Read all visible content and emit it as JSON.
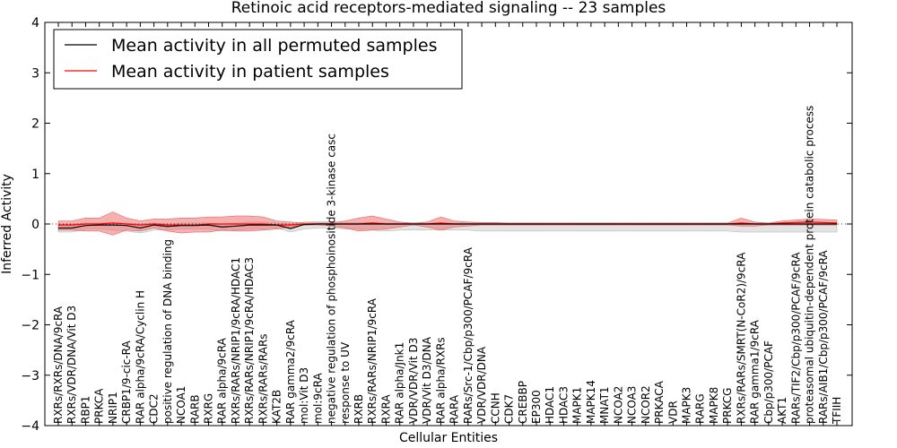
{
  "chart_data": {
    "type": "line",
    "title": "Retinoic acid receptors-mediated signaling -- 23 samples",
    "xlabel": "Cellular Entities",
    "ylabel": "Inferred Activity",
    "ylim": [
      -4,
      4
    ],
    "yticks": [
      -4,
      -3,
      -2,
      -1,
      0,
      1,
      2,
      3,
      4
    ],
    "ytick_labels": [
      "−4",
      "−3",
      "−2",
      "−1",
      "0",
      "1",
      "2",
      "3",
      "4"
    ],
    "legend": {
      "placement": "top-left",
      "entries": [
        {
          "label": "Mean activity in all permuted samples",
          "color": "#000000"
        },
        {
          "label": "Mean activity in patient samples",
          "color": "#ff0000"
        }
      ]
    },
    "categories": [
      "RXRs/RXRs/DNA/9cRA",
      "RXRs/VDR/DNA/Vit D3",
      "RBP1",
      "PRKCA",
      "NRIP1",
      "CRBP1/9-cic-RA",
      "RAR alpha/9cRA/Cyclin H",
      "CDC2",
      "positive regulation of DNA binding",
      "NCOA1",
      "RARB",
      "RXRG",
      "RAR alpha/9cRA",
      "RXRs/RARs/NRIP1/9cRA/HDAC1",
      "RXRs/RARs/NRIP1/9cRA/HDAC3",
      "RXRs/RARs/RARs",
      "KAT2B",
      "RAR gamma2/9cRA",
      "mol:Vit D3",
      "mol:9cRA",
      "negative regulation of phosphoinositide 3-kinase casc",
      "response to UV",
      "RXRB",
      "RXRs/RARs/NRIP1/9cRA",
      "RXRA",
      "RAR alpha/Jnk1",
      "VDR/VDR/Vit D3",
      "VDR/Vit D3/DNA",
      "RAR alpha/RXRs",
      "RARA",
      "RARs/Src-1/Cbp/p300/PCAF/9cRA",
      "VDR/VDR/DNA",
      "CCNH",
      "CDK7",
      "CREBBP",
      "EP300",
      "HDAC1",
      "HDAC3",
      "MAPK1",
      "MAPK14",
      "MNAT1",
      "NCOA2",
      "NCOA3",
      "NCOR2",
      "PRKACA",
      "VDR",
      "MAPK3",
      "RARG",
      "MAPK8",
      "PRKCG",
      "RXRs/RARs/SMRT(N-CoR2)/9cRA",
      "RAR gamma1/9cRA",
      "Cbp/p300/PCAF",
      "AKT1",
      "RARs/TIF2/Cbp/p300/PCAF/9cRA",
      "proteasomal ubiquitin-dependent protein catabolic process",
      "RARs/AIB1/Cbp/p300/PCAF/9cRA",
      "TFIIH"
    ],
    "series": [
      {
        "name": "Mean activity in all permuted samples",
        "color": "#000000",
        "values": [
          -0.08,
          -0.08,
          -0.03,
          -0.02,
          -0.02,
          -0.03,
          -0.08,
          -0.02,
          -0.05,
          -0.03,
          -0.03,
          -0.02,
          -0.06,
          -0.04,
          -0.02,
          -0.02,
          -0.02,
          -0.09,
          -0.01,
          0.0,
          0.0,
          0.0,
          0.0,
          0.0,
          0.0,
          0.0,
          0.0,
          0.0,
          0.0,
          0.0,
          0.0,
          0.0,
          0.0,
          0.0,
          0.0,
          0.0,
          0.0,
          0.0,
          0.0,
          0.0,
          0.0,
          0.0,
          0.0,
          0.0,
          0.0,
          0.0,
          0.0,
          0.0,
          0.0,
          0.0,
          0.0,
          0.0,
          0.0,
          0.0,
          0.0,
          0.0,
          0.0,
          0.0
        ],
        "band_upper": [
          0.0,
          0.0,
          0.02,
          0.02,
          0.02,
          0.02,
          0.0,
          0.02,
          0.0,
          0.02,
          0.02,
          0.02,
          0.0,
          0.02,
          0.04,
          0.04,
          0.02,
          0.0,
          0.04,
          0.05,
          0.05,
          0.03,
          0.03,
          0.03,
          0.02,
          0.02,
          0.02,
          0.02,
          0.02,
          0.02,
          0.02,
          0.02,
          0.02,
          0.02,
          0.02,
          0.02,
          0.02,
          0.02,
          0.02,
          0.02,
          0.02,
          0.02,
          0.02,
          0.02,
          0.02,
          0.02,
          0.02,
          0.02,
          0.02,
          0.02,
          0.02,
          0.02,
          0.02,
          0.02,
          0.02,
          0.02,
          0.02,
          0.02
        ],
        "band_lower": [
          -0.16,
          -0.16,
          -0.1,
          -0.1,
          -0.12,
          -0.14,
          -0.18,
          -0.12,
          -0.12,
          -0.1,
          -0.1,
          -0.1,
          -0.14,
          -0.12,
          -0.1,
          -0.1,
          -0.08,
          -0.16,
          -0.1,
          -0.08,
          -0.08,
          -0.1,
          -0.1,
          -0.12,
          -0.14,
          -0.12,
          -0.12,
          -0.12,
          -0.12,
          -0.12,
          -0.12,
          -0.14,
          -0.14,
          -0.14,
          -0.14,
          -0.14,
          -0.14,
          -0.14,
          -0.14,
          -0.14,
          -0.14,
          -0.14,
          -0.14,
          -0.14,
          -0.14,
          -0.14,
          -0.14,
          -0.14,
          -0.14,
          -0.14,
          -0.16,
          -0.16,
          -0.16,
          -0.16,
          -0.16,
          -0.16,
          -0.16,
          -0.16
        ]
      },
      {
        "name": "Mean activity in patient samples",
        "color": "#ff0000",
        "values": [
          -0.02,
          -0.02,
          0.0,
          0.0,
          0.02,
          0.0,
          -0.02,
          0.0,
          -0.02,
          -0.02,
          -0.02,
          0.0,
          0.0,
          0.0,
          0.0,
          0.0,
          -0.02,
          -0.02,
          0.0,
          0.0,
          0.0,
          0.0,
          0.0,
          0.02,
          0.0,
          0.0,
          0.0,
          0.0,
          0.02,
          0.0,
          0.0,
          0.0,
          0.0,
          0.0,
          0.0,
          0.0,
          0.0,
          0.0,
          0.0,
          0.0,
          0.0,
          0.0,
          0.0,
          0.0,
          0.0,
          0.0,
          0.0,
          0.0,
          0.0,
          0.0,
          0.02,
          0.0,
          0.0,
          0.02,
          0.03,
          0.04,
          0.03,
          0.02
        ],
        "band_upper": [
          0.06,
          0.06,
          0.12,
          0.12,
          0.24,
          0.12,
          0.06,
          0.1,
          0.1,
          0.12,
          0.12,
          0.14,
          0.14,
          0.16,
          0.16,
          0.14,
          0.06,
          0.04,
          0.02,
          0.02,
          0.02,
          0.06,
          0.12,
          0.16,
          0.1,
          0.04,
          0.02,
          0.04,
          0.14,
          0.06,
          0.04,
          0.03,
          0.03,
          0.02,
          0.02,
          0.02,
          0.02,
          0.02,
          0.02,
          0.02,
          0.02,
          0.02,
          0.02,
          0.02,
          0.02,
          0.02,
          0.02,
          0.02,
          0.02,
          0.02,
          0.12,
          0.04,
          0.02,
          0.06,
          0.08,
          0.1,
          0.09,
          0.08
        ],
        "band_lower": [
          -0.12,
          -0.12,
          -0.14,
          -0.14,
          -0.22,
          -0.12,
          -0.14,
          -0.08,
          -0.14,
          -0.18,
          -0.16,
          -0.16,
          -0.12,
          -0.14,
          -0.14,
          -0.12,
          -0.1,
          -0.06,
          -0.02,
          -0.02,
          -0.04,
          -0.08,
          -0.14,
          -0.12,
          -0.1,
          -0.06,
          -0.02,
          -0.06,
          -0.12,
          -0.06,
          -0.04,
          -0.02,
          -0.02,
          -0.02,
          -0.02,
          -0.02,
          -0.02,
          -0.02,
          -0.02,
          -0.02,
          -0.02,
          -0.02,
          -0.02,
          -0.02,
          -0.02,
          -0.02,
          -0.02,
          -0.02,
          -0.02,
          -0.02,
          -0.04,
          -0.04,
          -0.02,
          -0.02,
          -0.02,
          -0.02,
          -0.02,
          -0.02
        ]
      }
    ]
  }
}
